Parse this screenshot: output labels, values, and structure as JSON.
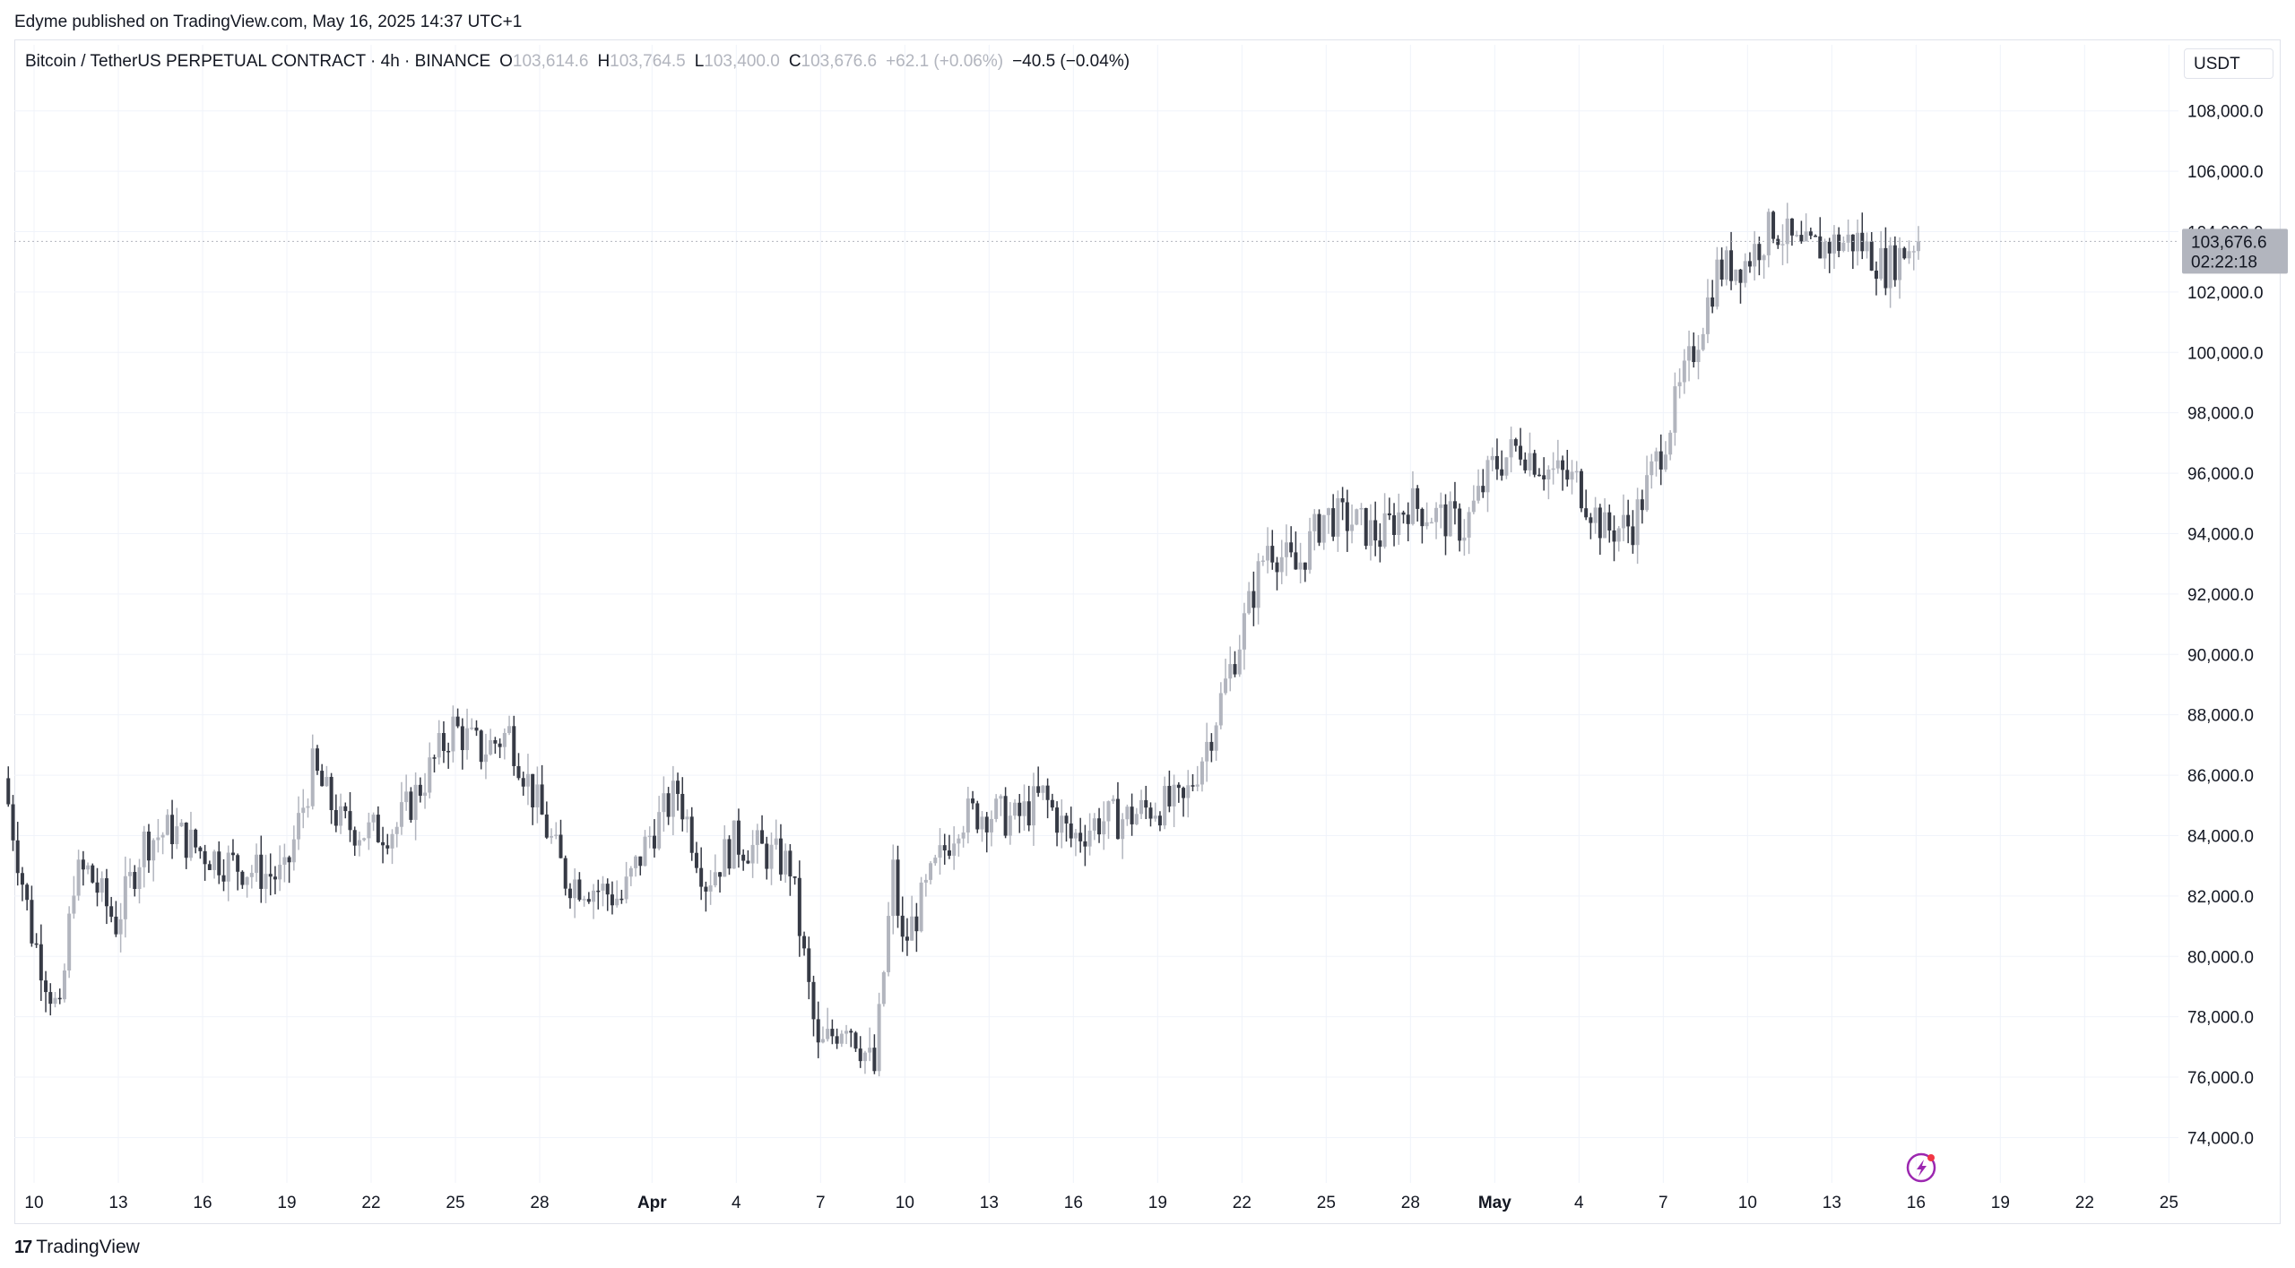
{
  "header": {
    "attribution": "Edyme published on TradingView.com, May 16, 2025 14:37 UTC+1"
  },
  "legend": {
    "symbol": "Bitcoin / TetherUS PERPETUAL CONTRACT · 4h · BINANCE",
    "open_label": "O",
    "open": "103,614.6",
    "high_label": "H",
    "high": "103,764.5",
    "low_label": "L",
    "low": "103,400.0",
    "close_label": "C",
    "close": "103,676.6",
    "change": "+62.1 (+0.06%)",
    "change2": "−40.5 (−0.04%)"
  },
  "currency_button": "USDT",
  "footer": {
    "brand": "TradingView"
  },
  "colors": {
    "up_candle": "#b2b5be",
    "down_candle": "#363a45",
    "grid": "#f0f3fa",
    "price_tag_bg": "#b2b5be",
    "bolt_icon": "#9c27b0"
  },
  "icons": {
    "bolt": "lightning-bolt-icon",
    "logo": "tradingview-logo-icon"
  },
  "chart_data": {
    "type": "candlestick",
    "interval": "4h",
    "y_axis": {
      "ylim": [
        72500,
        109000
      ],
      "tick_labels": [
        "108,000.0",
        "106,000.0",
        "104,000.0",
        "102,000.0",
        "100,000.0",
        "98,000.0",
        "96,000.0",
        "94,000.0",
        "92,000.0",
        "90,000.0",
        "88,000.0",
        "86,000.0",
        "84,000.0",
        "82,000.0",
        "80,000.0",
        "78,000.0",
        "76,000.0",
        "74,000.0"
      ],
      "tick_values": [
        108000,
        106000,
        104000,
        102000,
        100000,
        98000,
        96000,
        94000,
        92000,
        90000,
        88000,
        86000,
        84000,
        82000,
        80000,
        78000,
        76000,
        74000
      ]
    },
    "x_axis": {
      "tick_labels": [
        "10",
        "13",
        "16",
        "19",
        "22",
        "25",
        "28",
        "Apr",
        "4",
        "7",
        "10",
        "13",
        "16",
        "19",
        "22",
        "25",
        "28",
        "May",
        "4",
        "7",
        "10",
        "13",
        "16",
        "19",
        "22",
        "25"
      ],
      "tick_dates": [
        "2025-03-10",
        "2025-03-13",
        "2025-03-16",
        "2025-03-19",
        "2025-03-22",
        "2025-03-25",
        "2025-03-28",
        "2025-04-01",
        "2025-04-04",
        "2025-04-07",
        "2025-04-10",
        "2025-04-13",
        "2025-04-16",
        "2025-04-19",
        "2025-04-22",
        "2025-04-25",
        "2025-04-28",
        "2025-05-01",
        "2025-05-04",
        "2025-05-07",
        "2025-05-10",
        "2025-05-13",
        "2025-05-16",
        "2025-05-19",
        "2025-05-22",
        "2025-05-25"
      ],
      "bold_labels": [
        "Apr",
        "May"
      ]
    },
    "last_price": {
      "price": 103676.6,
      "label": "103,676.6",
      "countdown": "02:22:18"
    },
    "approx_close_path": [
      [
        "2025-03-09",
        85900
      ],
      [
        "2025-03-10",
        80800
      ],
      [
        "2025-03-11",
        77900
      ],
      [
        "2025-03-11 12:00",
        82600
      ],
      [
        "2025-03-12",
        82800
      ],
      [
        "2025-03-13",
        81100
      ],
      [
        "2025-03-14",
        83800
      ],
      [
        "2025-03-15",
        84200
      ],
      [
        "2025-03-16",
        83500
      ],
      [
        "2025-03-17",
        83100
      ],
      [
        "2025-03-18",
        82800
      ],
      [
        "2025-03-19",
        82600
      ],
      [
        "2025-03-20",
        86200
      ],
      [
        "2025-03-21",
        84400
      ],
      [
        "2025-03-22",
        84100
      ],
      [
        "2025-03-23",
        84300
      ],
      [
        "2025-03-24",
        85900
      ],
      [
        "2025-03-25",
        87600
      ],
      [
        "2025-03-26",
        86800
      ],
      [
        "2025-03-27",
        87400
      ],
      [
        "2025-03-28",
        85000
      ],
      [
        "2025-03-29",
        82600
      ],
      [
        "2025-03-30",
        82300
      ],
      [
        "2025-03-31",
        81900
      ],
      [
        "2025-04-01",
        84000
      ],
      [
        "2025-04-02",
        85500
      ],
      [
        "2025-04-03",
        82500
      ],
      [
        "2025-04-04",
        83800
      ],
      [
        "2025-04-05",
        83500
      ],
      [
        "2025-04-06",
        83000
      ],
      [
        "2025-04-07",
        76800
      ],
      [
        "2025-04-08",
        78000
      ],
      [
        "2025-04-09",
        76200
      ],
      [
        "2025-04-09 16:00",
        82800
      ],
      [
        "2025-04-10",
        80300
      ],
      [
        "2025-04-11",
        82500
      ],
      [
        "2025-04-12",
        84600
      ],
      [
        "2025-04-13",
        84800
      ],
      [
        "2025-04-14",
        84500
      ],
      [
        "2025-04-15",
        85300
      ],
      [
        "2025-04-16",
        83900
      ],
      [
        "2025-04-17",
        84500
      ],
      [
        "2025-04-18",
        84600
      ],
      [
        "2025-04-19",
        85000
      ],
      [
        "2025-04-20",
        85000
      ],
      [
        "2025-04-21",
        87500
      ],
      [
        "2025-04-22",
        90500
      ],
      [
        "2025-04-23",
        93700
      ],
      [
        "2025-04-24",
        92800
      ],
      [
        "2025-04-25",
        94600
      ],
      [
        "2025-04-26",
        94400
      ],
      [
        "2025-04-27",
        93900
      ],
      [
        "2025-04-28",
        95000
      ],
      [
        "2025-04-29",
        94600
      ],
      [
        "2025-04-30",
        94200
      ],
      [
        "2025-05-01",
        96200
      ],
      [
        "2025-05-02",
        96900
      ],
      [
        "2025-05-03",
        96100
      ],
      [
        "2025-05-04",
        95700
      ],
      [
        "2025-05-05",
        94100
      ],
      [
        "2025-05-06",
        94300
      ],
      [
        "2025-05-07",
        96800
      ],
      [
        "2025-05-08",
        99600
      ],
      [
        "2025-05-09",
        102700
      ],
      [
        "2025-05-10",
        103000
      ],
      [
        "2025-05-11",
        104200
      ],
      [
        "2025-05-12",
        103300
      ],
      [
        "2025-05-13",
        103600
      ],
      [
        "2025-05-14",
        103700
      ],
      [
        "2025-05-15",
        102800
      ],
      [
        "2025-05-16",
        103676.6
      ]
    ]
  }
}
